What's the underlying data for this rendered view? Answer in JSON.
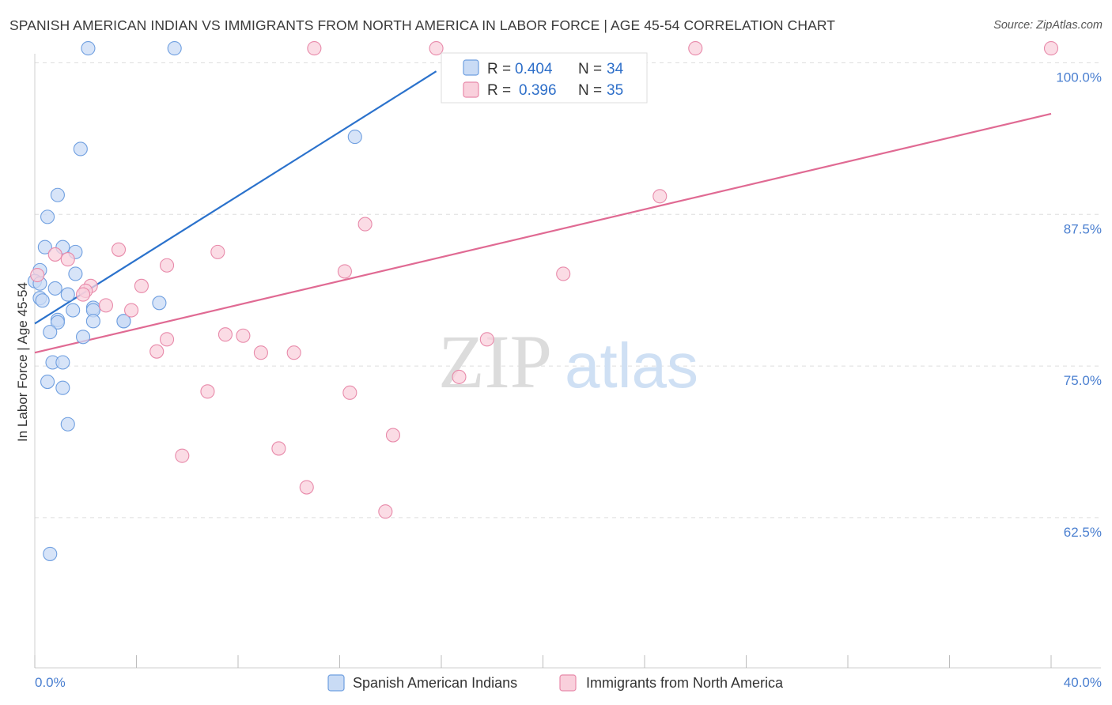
{
  "title": "SPANISH AMERICAN INDIAN VS IMMIGRANTS FROM NORTH AMERICA IN LABOR FORCE | AGE 45-54 CORRELATION CHART",
  "source": "Source: ZipAtlas.com",
  "watermark": {
    "zip": "ZIP",
    "atlas": "atlas"
  },
  "chart_data": {
    "type": "scatter",
    "ylabel": "In Labor Force | Age 45-54",
    "xlabel": "",
    "xlim": [
      0,
      40
    ],
    "ylim": [
      50,
      100
    ],
    "x_tick_labels": [
      "0.0%",
      "40.0%"
    ],
    "y_ticks": [
      {
        "value": 62.5,
        "label": "62.5%"
      },
      {
        "value": 75.0,
        "label": "75.0%"
      },
      {
        "value": 87.5,
        "label": "87.5%"
      },
      {
        "value": 100.0,
        "label": "100.0%"
      }
    ],
    "legend": [
      {
        "r_label": "R =",
        "r": "0.404",
        "n_label": "N =",
        "n": "34"
      },
      {
        "r_label": "R =",
        "r": "0.396",
        "n_label": "N =",
        "n": "35"
      }
    ],
    "series": [
      {
        "name": "Spanish American Indians",
        "color": "#6f9fe0",
        "fill": "#c9dbf5",
        "line_color": "#2b72cc",
        "trend": {
          "x": [
            0,
            15.8
          ],
          "y": [
            78.5,
            99.3
          ]
        },
        "points": [
          [
            2.1,
            101.2
          ],
          [
            5.5,
            101.2
          ],
          [
            12.6,
            93.9
          ],
          [
            1.8,
            92.9
          ],
          [
            0.9,
            89.1
          ],
          [
            0.5,
            87.3
          ],
          [
            0.4,
            84.8
          ],
          [
            1.1,
            84.8
          ],
          [
            1.6,
            84.4
          ],
          [
            0.2,
            82.9
          ],
          [
            1.6,
            82.6
          ],
          [
            0.0,
            82.0
          ],
          [
            0.2,
            81.8
          ],
          [
            0.8,
            81.4
          ],
          [
            1.3,
            80.9
          ],
          [
            0.2,
            80.6
          ],
          [
            0.3,
            80.4
          ],
          [
            4.9,
            80.2
          ],
          [
            2.3,
            79.8
          ],
          [
            1.5,
            79.6
          ],
          [
            2.3,
            79.6
          ],
          [
            0.9,
            78.8
          ],
          [
            2.3,
            78.7
          ],
          [
            3.5,
            78.7
          ],
          [
            3.5,
            78.7
          ],
          [
            0.9,
            78.6
          ],
          [
            0.6,
            77.8
          ],
          [
            1.9,
            77.4
          ],
          [
            0.7,
            75.3
          ],
          [
            1.1,
            75.3
          ],
          [
            0.5,
            73.7
          ],
          [
            1.1,
            73.2
          ],
          [
            1.3,
            70.2
          ],
          [
            0.6,
            59.5
          ]
        ]
      },
      {
        "name": "Immigrants from North America",
        "color": "#e88aaa",
        "fill": "#f9d0dc",
        "line_color": "#e06a93",
        "trend": {
          "x": [
            0,
            40
          ],
          "y": [
            76.1,
            95.8
          ]
        },
        "points": [
          [
            11.0,
            101.2
          ],
          [
            15.8,
            101.2
          ],
          [
            26.0,
            101.2
          ],
          [
            40.0,
            101.2
          ],
          [
            24.6,
            89.0
          ],
          [
            13.0,
            86.7
          ],
          [
            3.3,
            84.6
          ],
          [
            7.2,
            84.4
          ],
          [
            0.8,
            84.2
          ],
          [
            1.3,
            83.8
          ],
          [
            5.2,
            83.3
          ],
          [
            12.2,
            82.8
          ],
          [
            20.8,
            82.6
          ],
          [
            2.2,
            81.6
          ],
          [
            4.2,
            81.6
          ],
          [
            2.0,
            81.2
          ],
          [
            2.8,
            80.0
          ],
          [
            3.8,
            79.6
          ],
          [
            7.5,
            77.6
          ],
          [
            8.2,
            77.5
          ],
          [
            5.2,
            77.2
          ],
          [
            17.8,
            77.2
          ],
          [
            4.8,
            76.2
          ],
          [
            8.9,
            76.1
          ],
          [
            10.2,
            76.1
          ],
          [
            16.7,
            74.1
          ],
          [
            6.8,
            72.9
          ],
          [
            12.4,
            72.8
          ],
          [
            14.1,
            69.3
          ],
          [
            5.8,
            67.6
          ],
          [
            9.6,
            68.2
          ],
          [
            10.7,
            65.0
          ],
          [
            13.8,
            63.0
          ],
          [
            0.1,
            82.5
          ],
          [
            1.9,
            80.9
          ]
        ]
      }
    ]
  },
  "bottom_legend": [
    "Spanish American Indians",
    "Immigrants from North America"
  ]
}
